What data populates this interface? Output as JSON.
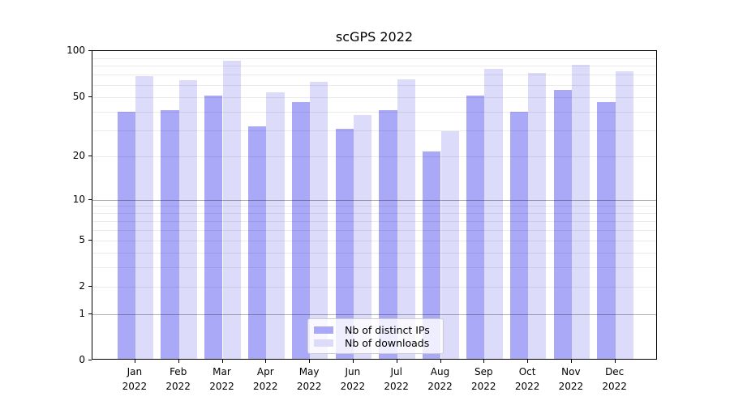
{
  "figure": {
    "title": "scGPS 2022"
  },
  "legend": {
    "items": [
      {
        "label": "Nb of distinct IPs",
        "color": "#a9a9f7"
      },
      {
        "label": "Nb of downloads",
        "color": "#dcdcfa"
      }
    ]
  },
  "colors": {
    "ips_bar": "#a9a9f7",
    "downloads_bar": "#dcdcfa",
    "axis": "#000000",
    "grid_major": "rgba(0,0,0,0.30)",
    "grid_minor": "rgba(0,0,0,0.08)"
  },
  "chart_data": {
    "type": "bar",
    "title": "scGPS 2022",
    "categories": [
      "Jan",
      "Feb",
      "Mar",
      "Apr",
      "May",
      "Jun",
      "Jul",
      "Aug",
      "Sep",
      "Oct",
      "Nov",
      "Dec"
    ],
    "year_label": "2022",
    "series": [
      {
        "name": "Nb of distinct IPs",
        "color": "#a9a9f7",
        "values": [
          39,
          40,
          50,
          31,
          45,
          30,
          40,
          21,
          50,
          39,
          54,
          45
        ]
      },
      {
        "name": "Nb of downloads",
        "color": "#dcdcfa",
        "values": [
          67,
          63,
          84,
          52,
          61,
          37,
          64,
          29,
          75,
          70,
          79,
          72
        ]
      }
    ],
    "ylim": [
      0,
      100
    ],
    "yscale": "symlog (log1p: position proportional to ln(1+y), 0 at baseline)",
    "ytick_values": [
      100,
      50,
      20,
      10,
      5,
      2,
      1,
      0
    ],
    "grid": {
      "major_values": [
        1,
        10
      ],
      "minor_values": [
        2,
        3,
        4,
        5,
        6,
        7,
        8,
        9,
        20,
        30,
        40,
        50,
        60,
        70,
        80,
        90
      ]
    },
    "legend_position": "lower center inside axes",
    "xlabel": "",
    "ylabel": ""
  }
}
